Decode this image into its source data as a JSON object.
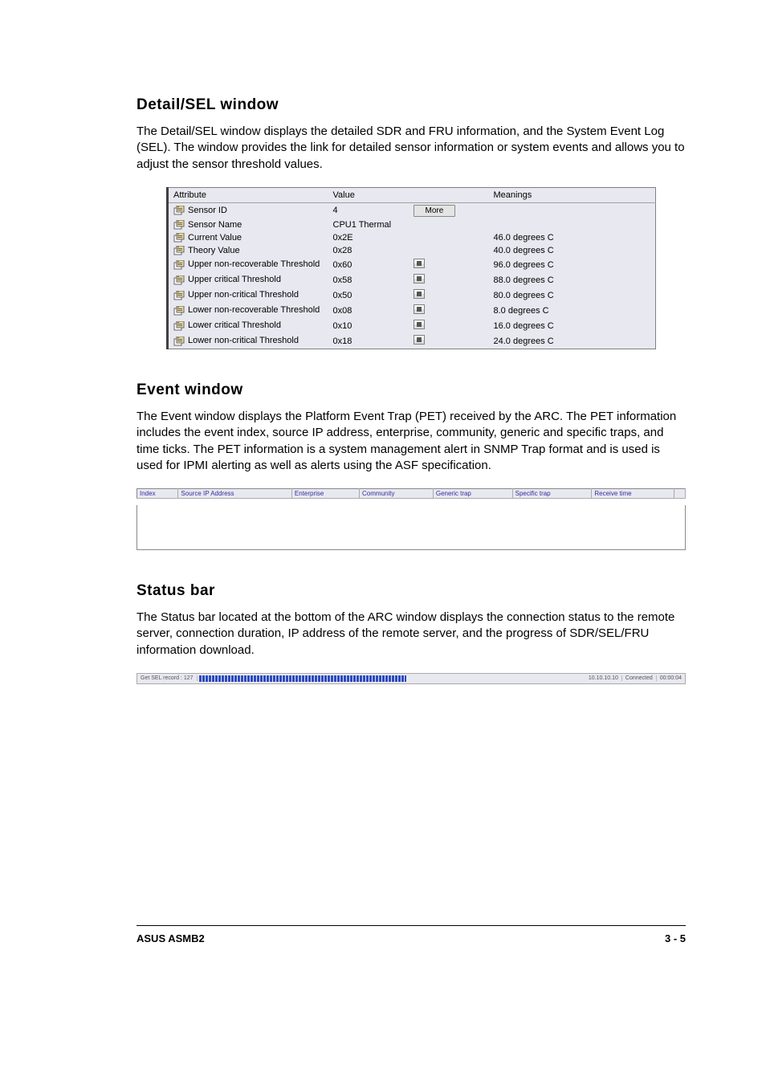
{
  "detail": {
    "heading": "Detail/SEL window",
    "paragraph": "The Detail/SEL window displays the detailed SDR and FRU information, and the System Event Log (SEL). The window provides the link for detailed sensor information or system events and allows you to adjust the sensor threshold values.",
    "table": {
      "headers": [
        "Attribute",
        "Value",
        "",
        "Meanings"
      ],
      "more_label": "More",
      "rows": [
        {
          "attr": "Sensor ID",
          "value": "4",
          "control": "more",
          "meaning": ""
        },
        {
          "attr": "Sensor Name",
          "value": "CPU1 Thermal",
          "control": "",
          "meaning": ""
        },
        {
          "attr": "Current Value",
          "value": "0x2E",
          "control": "",
          "meaning": "46.0 degrees C"
        },
        {
          "attr": "Theory Value",
          "value": "0x28",
          "control": "",
          "meaning": "40.0 degrees C"
        },
        {
          "attr": "Upper non-recoverable Threshold",
          "value": "0x60",
          "control": "spinner",
          "meaning": "96.0 degrees C"
        },
        {
          "attr": "Upper critical Threshold",
          "value": "0x58",
          "control": "spinner",
          "meaning": "88.0 degrees C"
        },
        {
          "attr": "Upper non-critical Threshold",
          "value": "0x50",
          "control": "spinner",
          "meaning": "80.0 degrees C"
        },
        {
          "attr": "Lower non-recoverable Threshold",
          "value": "0x08",
          "control": "spinner",
          "meaning": "8.0 degrees C"
        },
        {
          "attr": "Lower critical Threshold",
          "value": "0x10",
          "control": "spinner",
          "meaning": "16.0 degrees C"
        },
        {
          "attr": "Lower non-critical Threshold",
          "value": "0x18",
          "control": "spinner",
          "meaning": "24.0 degrees C"
        }
      ]
    }
  },
  "event": {
    "heading": "Event window",
    "paragraph": "The Event window displays the Platform Event Trap (PET) received by the ARC. The PET information includes the event index, source IP address, enterprise, community, generic and specific traps, and time ticks. The PET information is a system management alert in SNMP Trap format and is used is used for IPMI alerting as well as alerts using the ASF specification.",
    "columns": [
      "Index",
      "Source IP Address",
      "Enterprise",
      "Community",
      "Generic trap",
      "Specific trap",
      "Receive time",
      ""
    ]
  },
  "status": {
    "heading": "Status bar",
    "paragraph": "The Status bar located at the bottom of the ARC window displays the connection status to the remote server, connection duration, IP address of the remote server, and the progress of SDR/SEL/FRU information download.",
    "task": "Get SEL record : 127",
    "ip": "10.10.10.10",
    "conn": "Connected",
    "time": "00:00:04"
  },
  "footer": {
    "left": "ASUS ASMB2",
    "right": "3 - 5"
  }
}
